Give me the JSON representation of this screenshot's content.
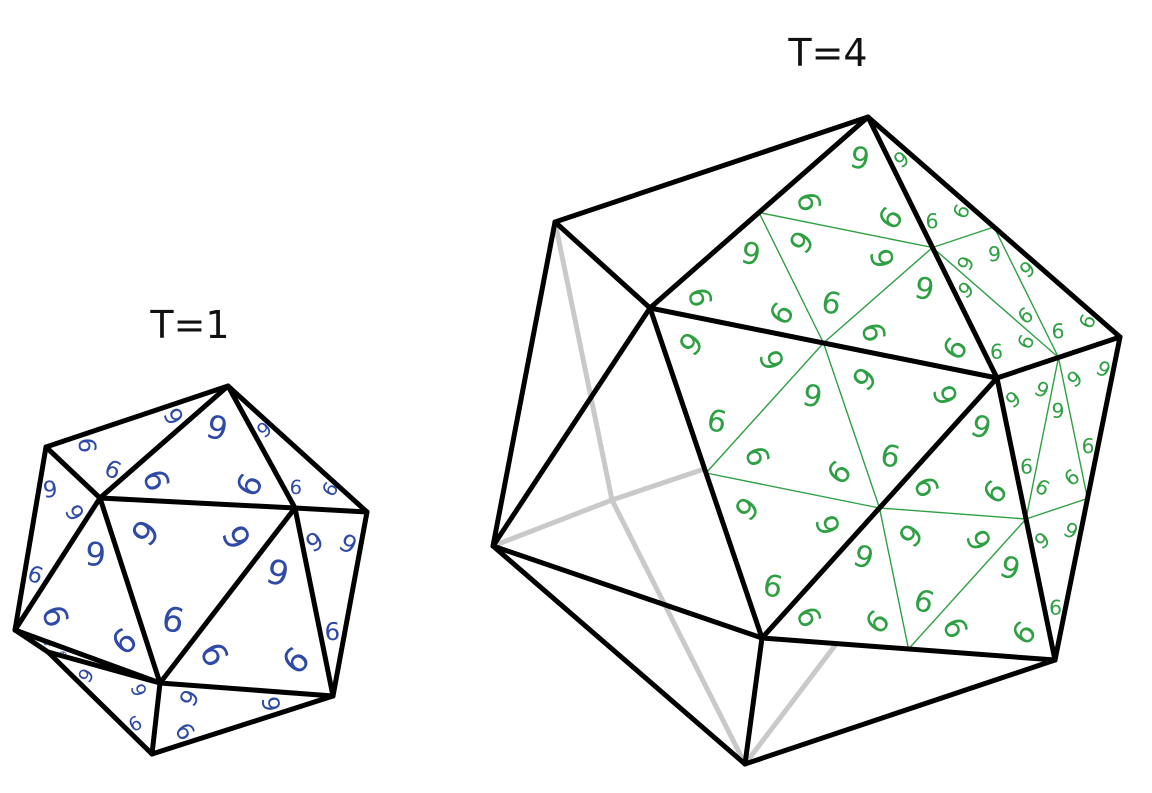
{
  "labels": {
    "t1": "T=1",
    "t4": "T=4"
  },
  "glyph": "6",
  "colors": {
    "t1_glyph": "#2e4aa6",
    "t4_glyph": "#2ea043",
    "edge": "#000000",
    "hidden_edge": "#c9c9c9"
  },
  "icosahedra": [
    {
      "key": "t1",
      "triangulation": 1
    },
    {
      "key": "t4",
      "triangulation": 4
    }
  ]
}
